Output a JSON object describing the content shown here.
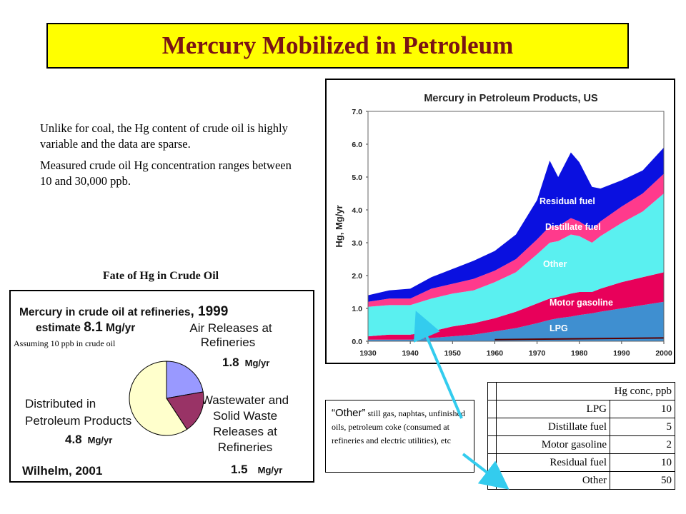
{
  "title": "Mercury Mobilized in Petroleum",
  "intro": [
    "Unlike for coal, the Hg content of crude oil is highly variable and the data are sparse.",
    "Measured crude oil Hg concentration ranges between 10 and 30,000 ppb."
  ],
  "fate": {
    "heading": "Fate of Hg in Crude Oil",
    "line1": "Mercury in crude oil at refineries",
    "line1_year": ", 1999",
    "estimate_label": "estimate",
    "estimate_value": "8.1",
    "unit": "Mg/yr",
    "assumption": "Assuming 10 ppb in crude oil",
    "air_label_1": "Air Releases at",
    "air_label_2": "Refineries",
    "air_value": "1.8",
    "dist_label_1": "Distributed in",
    "dist_label_2": "Petroleum Products",
    "dist_value": "4.8",
    "waste_label_1": "Wastewater and",
    "waste_label_2": "Solid Waste",
    "waste_label_3": "Releases at",
    "waste_label_4": "Refineries",
    "waste_value": "1.5",
    "source": "Wilhelm, 2001"
  },
  "note": {
    "lead": "“Other”",
    "text1": " still gas, naphtas, unfinished oils, petroleum coke (consumed at refineries and electric utilities), etc"
  },
  "table": {
    "header": "Hg conc, ppb",
    "rows": [
      {
        "name": "LPG",
        "value": "10"
      },
      {
        "name": "Distillate fuel",
        "value": "5"
      },
      {
        "name": "Motor gasoline",
        "value": "2"
      },
      {
        "name": "Residual fuel",
        "value": "10"
      },
      {
        "name": "Other",
        "value": "50"
      }
    ]
  },
  "colors": {
    "title_bg": "#ffff00",
    "title_text": "#7a1414",
    "arrow": "#33ccee"
  },
  "chart_data": [
    {
      "type": "area",
      "title": "Mercury in Petroleum Products, US",
      "ylabel": "Hg, Mg/yr",
      "xlim": [
        1930,
        2000
      ],
      "ylim": [
        0,
        7
      ],
      "x_ticks": [
        "1930",
        "1940",
        "1950",
        "1960",
        "1970",
        "1980",
        "1990",
        "2000"
      ],
      "y_ticks": [
        "0.0",
        "1.0",
        "2.0",
        "3.0",
        "4.0",
        "5.0",
        "6.0",
        "7.0"
      ],
      "stacked": true,
      "x": [
        1930,
        1935,
        1940,
        1945,
        1950,
        1955,
        1960,
        1965,
        1970,
        1973,
        1975,
        1978,
        1980,
        1983,
        1985,
        1990,
        1995,
        2000
      ],
      "series": [
        {
          "name": "LPG",
          "color": "#3f8fd0",
          "values": [
            0.05,
            0.05,
            0.05,
            0.1,
            0.15,
            0.2,
            0.3,
            0.4,
            0.55,
            0.65,
            0.7,
            0.75,
            0.8,
            0.85,
            0.9,
            1.0,
            1.1,
            1.2
          ]
        },
        {
          "name": "Motor gasoline",
          "color": "#e8005a",
          "values": [
            0.1,
            0.15,
            0.15,
            0.2,
            0.3,
            0.35,
            0.4,
            0.5,
            0.6,
            0.65,
            0.65,
            0.7,
            0.7,
            0.65,
            0.7,
            0.8,
            0.85,
            0.9
          ]
        },
        {
          "name": "Other",
          "color": "#5af0f0",
          "values": [
            0.9,
            0.9,
            0.9,
            1.0,
            1.0,
            1.0,
            1.1,
            1.2,
            1.5,
            1.7,
            1.7,
            1.8,
            1.7,
            1.5,
            1.6,
            1.8,
            2.0,
            2.4
          ]
        },
        {
          "name": "Distillate fuel",
          "color": "#ff3a8c",
          "values": [
            0.15,
            0.2,
            0.2,
            0.3,
            0.3,
            0.35,
            0.35,
            0.4,
            0.45,
            0.5,
            0.45,
            0.5,
            0.45,
            0.4,
            0.45,
            0.5,
            0.55,
            0.6
          ]
        },
        {
          "name": "Residual fuel",
          "color": "#0a10e0",
          "values": [
            0.2,
            0.25,
            0.3,
            0.35,
            0.45,
            0.55,
            0.6,
            0.75,
            1.2,
            2.0,
            1.5,
            2.0,
            1.8,
            1.3,
            1.0,
            0.8,
            0.7,
            0.8
          ]
        }
      ]
    },
    {
      "type": "pie",
      "title": "Mercury in crude oil at refineries, 1999",
      "categories": [
        "Air Releases at Refineries",
        "Wastewater and Solid Waste Releases at Refineries",
        "Distributed in Petroleum Products"
      ],
      "values": [
        1.8,
        1.5,
        4.8
      ],
      "colors": [
        "#9999ff",
        "#993366",
        "#ffffcc"
      ]
    }
  ]
}
